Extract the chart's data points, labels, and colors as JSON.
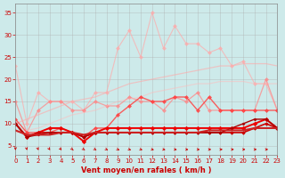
{
  "x": [
    0,
    1,
    2,
    3,
    4,
    5,
    6,
    7,
    8,
    9,
    10,
    11,
    12,
    13,
    14,
    15,
    16,
    17,
    18,
    19,
    20,
    21,
    22,
    23
  ],
  "bg_color": "#cdeaea",
  "grid_color": "#aaaaaa",
  "tick_color": "#cc0000",
  "label_color": "#cc0000",
  "xlabel": "Vent moyen/en rafales ( km/h )",
  "xlim": [
    0,
    23
  ],
  "ylim": [
    3,
    37
  ],
  "yticks": [
    5,
    10,
    15,
    20,
    25,
    30,
    35
  ],
  "xticks": [
    0,
    1,
    2,
    3,
    4,
    5,
    6,
    7,
    8,
    9,
    10,
    11,
    12,
    13,
    14,
    15,
    16,
    17,
    18,
    19,
    20,
    21,
    22,
    23
  ],
  "series": [
    {
      "name": "lightest_pink_zigzag",
      "color": "#ffaaaa",
      "alpha": 0.7,
      "linewidth": 0.8,
      "marker": "D",
      "markersize": 2.0,
      "y": [
        23,
        10,
        17,
        15,
        15,
        15,
        13,
        17,
        17,
        27,
        31,
        25,
        35,
        27,
        32,
        28,
        28,
        26,
        27,
        23,
        24,
        19,
        19,
        13
      ]
    },
    {
      "name": "light_pink_zigzag",
      "color": "#ff8888",
      "alpha": 0.75,
      "linewidth": 0.9,
      "marker": "D",
      "markersize": 2.0,
      "y": [
        15,
        8,
        13,
        15,
        15,
        13,
        13,
        15,
        14,
        14,
        16,
        15,
        15,
        13,
        16,
        15,
        17,
        13,
        13,
        13,
        13,
        13,
        20,
        13
      ]
    },
    {
      "name": "upper_smooth1",
      "color": "#ffaaaa",
      "alpha": 0.6,
      "linewidth": 0.9,
      "marker": "none",
      "markersize": 0,
      "y": [
        10,
        11,
        12,
        13,
        14,
        15,
        15.5,
        16,
        17,
        18,
        19,
        19.5,
        20,
        20.5,
        21,
        21.5,
        22,
        22.5,
        23,
        23,
        23.5,
        23.5,
        23.5,
        23
      ]
    },
    {
      "name": "upper_smooth2",
      "color": "#ffbbbb",
      "alpha": 0.5,
      "linewidth": 0.9,
      "marker": "none",
      "markersize": 0,
      "y": [
        8,
        8.5,
        9,
        10,
        11,
        12,
        12.5,
        13,
        14,
        15,
        15.5,
        16,
        17,
        17.5,
        18,
        18.5,
        19,
        19,
        19.5,
        19.5,
        19.5,
        19,
        19,
        19
      ]
    },
    {
      "name": "medium_red_zigzag",
      "color": "#ff4444",
      "alpha": 0.85,
      "linewidth": 1.0,
      "marker": "D",
      "markersize": 2.0,
      "y": [
        11,
        8,
        8,
        8,
        9,
        8,
        7,
        9,
        9,
        12,
        14,
        16,
        15,
        15,
        16,
        16,
        13,
        16,
        13,
        13,
        13,
        13,
        13,
        13
      ]
    },
    {
      "name": "red_main",
      "color": "#ee0000",
      "alpha": 1.0,
      "linewidth": 1.4,
      "marker": "D",
      "markersize": 2.2,
      "y": [
        10,
        7,
        8,
        9,
        9,
        8,
        6,
        8,
        9,
        9,
        9,
        9,
        9,
        9,
        9,
        9,
        9,
        9,
        9,
        9,
        9,
        10,
        11,
        9
      ]
    },
    {
      "name": "dark_red1",
      "color": "#cc0000",
      "alpha": 1.0,
      "linewidth": 1.2,
      "marker": "D",
      "markersize": 1.8,
      "y": [
        10,
        7,
        8,
        8,
        8,
        8,
        7,
        8,
        8,
        8,
        8,
        8,
        8,
        8,
        8,
        8,
        8,
        8,
        8,
        8,
        8,
        9,
        10,
        9
      ]
    },
    {
      "name": "dark_red2",
      "color": "#aa0000",
      "alpha": 1.0,
      "linewidth": 1.0,
      "marker": "D",
      "markersize": 1.5,
      "y": [
        10,
        7,
        7.5,
        8,
        8,
        8,
        7,
        8,
        8,
        8,
        8,
        8,
        8,
        8,
        8,
        8,
        8,
        8,
        8,
        9,
        10,
        11,
        11,
        9
      ]
    },
    {
      "name": "lowest_smooth",
      "color": "#cc2222",
      "alpha": 1.0,
      "linewidth": 1.5,
      "marker": "none",
      "markersize": 0,
      "y": [
        8.5,
        7.5,
        7.5,
        7.5,
        8,
        8,
        7.5,
        8,
        8,
        8,
        8,
        8,
        8,
        8,
        8,
        8,
        8,
        8.5,
        8.5,
        8.5,
        8.5,
        9,
        9,
        9
      ]
    }
  ],
  "arrows": {
    "y": 4.2,
    "color": "#cc0000",
    "angles_deg": [
      0,
      5,
      10,
      15,
      20,
      25,
      30,
      35,
      40,
      45,
      50,
      55,
      60,
      65,
      70,
      75,
      80,
      85,
      90,
      90,
      90,
      90,
      90,
      90
    ]
  }
}
